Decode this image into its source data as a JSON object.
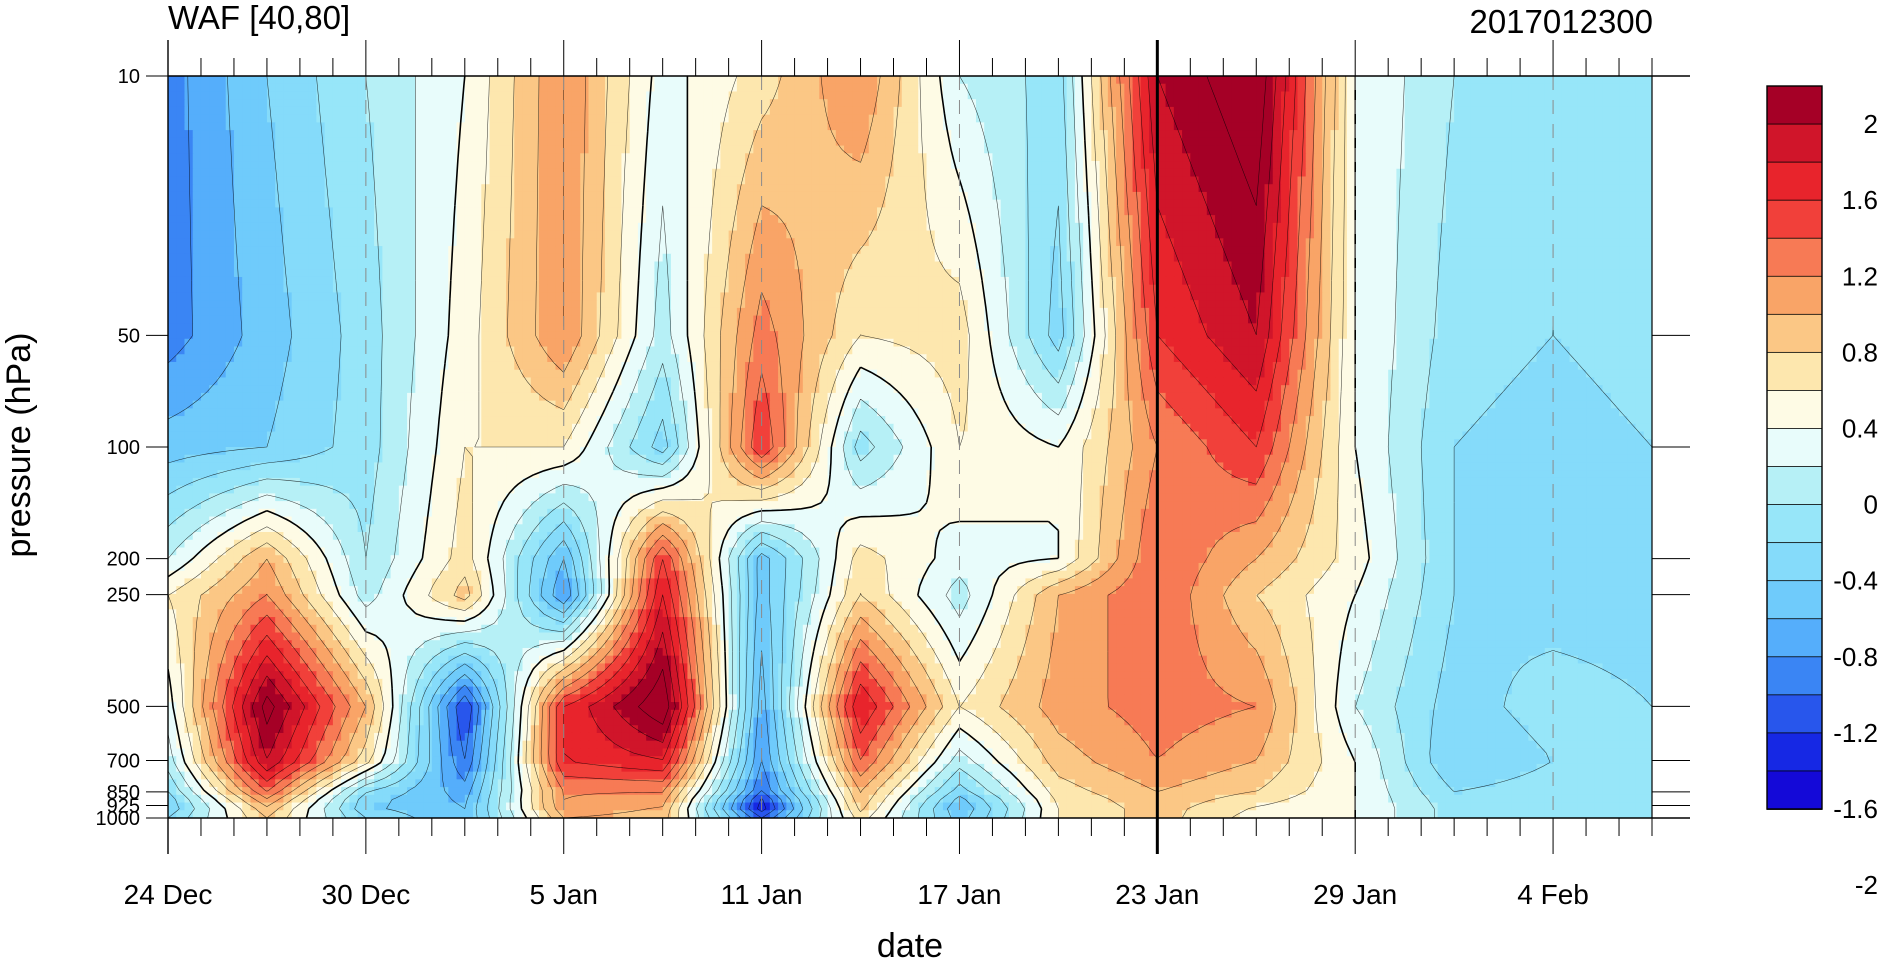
{
  "chart_data": {
    "type": "heatmap",
    "title_left": "WAF [40,80]",
    "title_right": "2017012300",
    "xlabel": "date",
    "ylabel": "pressure (hPa)",
    "x_tick_labels": [
      "24 Dec",
      "30 Dec",
      "5 Jan",
      "11 Jan",
      "17 Jan",
      "23 Jan",
      "29 Jan",
      "4 Feb"
    ],
    "x_tick_day_offsets": [
      0,
      6,
      12,
      18,
      24,
      30,
      36,
      42
    ],
    "x_range_days": [
      0,
      45
    ],
    "marker_day": 30,
    "y_tick_labels": [
      "10",
      "50",
      "100",
      "200",
      "250",
      "500",
      "700",
      "850",
      "925",
      "1000"
    ],
    "y_ticks": [
      10,
      50,
      100,
      200,
      250,
      500,
      700,
      850,
      925,
      1000
    ],
    "y_scale": "log",
    "y_range": [
      1000,
      10
    ],
    "levels": [
      -2.2,
      -2.0,
      -1.8,
      -1.6,
      -1.4,
      -1.2,
      -1.0,
      -0.8,
      -0.6,
      -0.4,
      -0.2,
      0,
      0.2,
      0.4,
      0.6,
      0.8,
      1.0,
      1.2,
      1.4,
      1.6,
      1.8,
      2.0,
      2.2
    ],
    "colorbar_labels": [
      "2",
      "1.6",
      "1.2",
      "0.8",
      "0.4",
      "0",
      "-0.4",
      "-0.8",
      "-1.2",
      "-1.6",
      "-2"
    ],
    "colorbar_colors": [
      "#a50026",
      "#d0152a",
      "#e8242c",
      "#f1403a",
      "#f77a55",
      "#f9a467",
      "#fbc785",
      "#fde7ae",
      "#fefbe5",
      "#e8fcfb",
      "#b6f0f6",
      "#97e6f9",
      "#85dbfa",
      "#6fcbfb",
      "#55aefb",
      "#3a85f4",
      "#2856ec",
      "#1628e4",
      "#1409d8"
    ],
    "grid": {
      "days": [
        0,
        3,
        6,
        9,
        12,
        15,
        18,
        21,
        24,
        27,
        30,
        33,
        36,
        39,
        42,
        45
      ],
      "pressures": [
        10,
        50,
        100,
        200,
        250,
        500,
        700,
        850,
        925,
        1000
      ],
      "values": [
        [
          -1.3,
          -0.8,
          -0.4,
          0.0,
          0.8,
          -0.1,
          0.3,
          0.8,
          -0.2,
          -0.5,
          1.6,
          2.0,
          0.0,
          -0.4,
          -0.6,
          -0.5
        ],
        [
          -1.3,
          -0.9,
          -0.5,
          0.1,
          0.8,
          -0.3,
          0.9,
          0.2,
          0.3,
          -0.7,
          1.2,
          1.6,
          0.0,
          -0.5,
          -0.6,
          -0.5
        ],
        [
          -0.9,
          -0.8,
          -0.5,
          0.2,
          0.2,
          -0.7,
          1.2,
          -0.5,
          0.2,
          0.0,
          0.8,
          1.2,
          0.0,
          -0.6,
          -0.7,
          -0.6
        ],
        [
          -0.2,
          0.6,
          -0.4,
          0.3,
          -1.0,
          1.2,
          -0.9,
          0.3,
          -0.1,
          0.0,
          1.0,
          0.6,
          0.1,
          -0.6,
          -0.8,
          -0.7
        ],
        [
          0.2,
          0.8,
          -0.3,
          0.5,
          -1.2,
          1.4,
          -0.9,
          0.4,
          -0.3,
          0.6,
          1.0,
          0.4,
          0.0,
          -0.6,
          -0.7,
          -0.7
        ],
        [
          -0.1,
          1.9,
          0.6,
          -1.6,
          1.2,
          2.0,
          -1.1,
          1.4,
          0.2,
          0.7,
          0.9,
          0.8,
          -0.2,
          -0.7,
          -0.5,
          -0.6
        ],
        [
          -0.3,
          1.6,
          0.3,
          -1.4,
          1.2,
          1.4,
          -1.2,
          1.0,
          -0.3,
          0.5,
          0.8,
          0.6,
          0.0,
          -0.8,
          -0.6,
          -0.6
        ],
        [
          -0.6,
          1.0,
          -0.6,
          -1.1,
          0.8,
          0.8,
          -1.4,
          0.6,
          -0.7,
          0.3,
          0.6,
          0.4,
          0.0,
          -0.6,
          -0.5,
          -0.6
        ],
        [
          -0.8,
          0.6,
          -0.8,
          -1.0,
          0.8,
          0.6,
          -1.8,
          0.5,
          -1.0,
          0.2,
          0.5,
          0.2,
          0.0,
          -0.5,
          -0.5,
          -0.6
        ],
        [
          -0.6,
          0.4,
          -0.6,
          -1.0,
          0.6,
          0.5,
          -1.4,
          0.3,
          -0.9,
          0.2,
          0.5,
          0.1,
          0.0,
          -0.5,
          -0.5,
          -0.6
        ]
      ]
    }
  }
}
